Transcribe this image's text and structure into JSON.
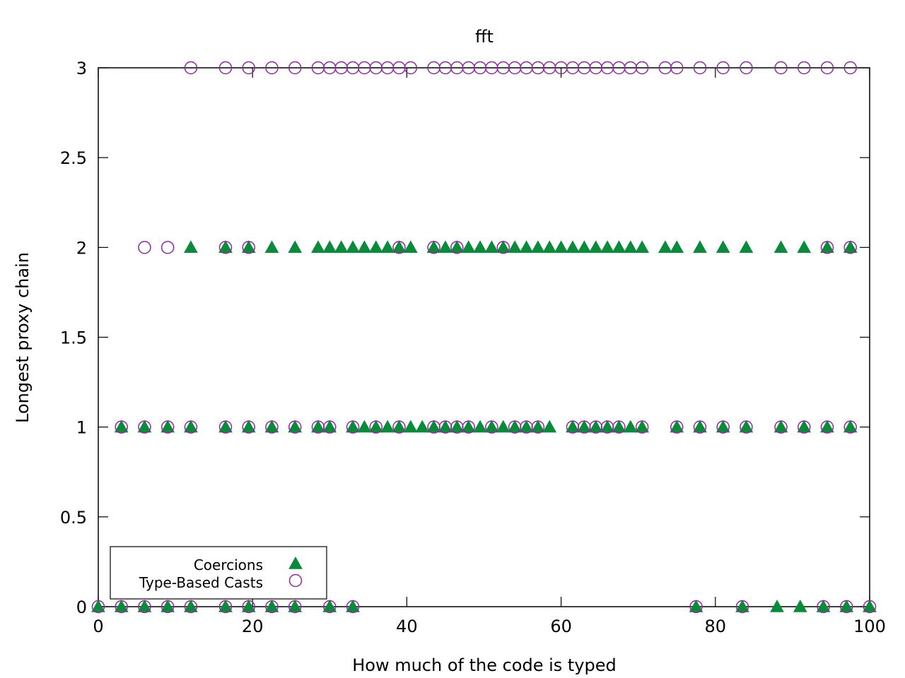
{
  "chart_data": {
    "type": "scatter",
    "title": "fft",
    "xlabel": "How much of the code is typed",
    "ylabel": "Longest proxy chain",
    "xlim": [
      0,
      100
    ],
    "ylim": [
      0,
      3
    ],
    "x_ticks": [
      0,
      20,
      40,
      60,
      80,
      100
    ],
    "y_ticks": [
      0,
      0.5,
      1,
      1.5,
      2,
      2.5,
      3
    ],
    "x_tick_labels": [
      "0",
      "20",
      "40",
      "60",
      "80",
      "100"
    ],
    "y_tick_labels": [
      "0",
      "0.5",
      "1",
      "1.5",
      "2",
      "2.5",
      "3"
    ],
    "grid": false,
    "legend_position": "bottom-left",
    "series": [
      {
        "name": "Coercions",
        "marker": "filled-triangle",
        "color": "#0a8a3a",
        "points": [
          [
            0,
            0
          ],
          [
            3,
            0
          ],
          [
            6,
            0
          ],
          [
            9,
            0
          ],
          [
            12,
            0
          ],
          [
            16.5,
            0
          ],
          [
            19.5,
            0
          ],
          [
            22.5,
            0
          ],
          [
            25.5,
            0
          ],
          [
            30,
            0
          ],
          [
            33,
            0
          ],
          [
            77.5,
            0
          ],
          [
            83.5,
            0
          ],
          [
            88,
            0
          ],
          [
            91,
            0
          ],
          [
            94,
            0
          ],
          [
            97,
            0
          ],
          [
            100,
            0
          ],
          [
            3,
            1
          ],
          [
            6,
            1
          ],
          [
            9,
            1
          ],
          [
            12,
            1
          ],
          [
            16.5,
            1
          ],
          [
            19.5,
            1
          ],
          [
            22.5,
            1
          ],
          [
            25.5,
            1
          ],
          [
            28.5,
            1
          ],
          [
            30,
            1
          ],
          [
            33,
            1
          ],
          [
            34.5,
            1
          ],
          [
            36,
            1
          ],
          [
            37.5,
            1
          ],
          [
            39,
            1
          ],
          [
            40.5,
            1
          ],
          [
            42,
            1
          ],
          [
            43.5,
            1
          ],
          [
            45,
            1
          ],
          [
            46.5,
            1
          ],
          [
            48,
            1
          ],
          [
            49.5,
            1
          ],
          [
            51,
            1
          ],
          [
            52.5,
            1
          ],
          [
            54,
            1
          ],
          [
            55.5,
            1
          ],
          [
            57,
            1
          ],
          [
            58.5,
            1
          ],
          [
            61.5,
            1
          ],
          [
            63,
            1
          ],
          [
            64.5,
            1
          ],
          [
            66,
            1
          ],
          [
            67.5,
            1
          ],
          [
            69,
            1
          ],
          [
            70.5,
            1
          ],
          [
            75,
            1
          ],
          [
            78,
            1
          ],
          [
            81,
            1
          ],
          [
            84,
            1
          ],
          [
            88.5,
            1
          ],
          [
            91.5,
            1
          ],
          [
            94.5,
            1
          ],
          [
            97.5,
            1
          ],
          [
            12,
            2
          ],
          [
            16.5,
            2
          ],
          [
            19.5,
            2
          ],
          [
            22.5,
            2
          ],
          [
            25.5,
            2
          ],
          [
            28.5,
            2
          ],
          [
            30,
            2
          ],
          [
            31.5,
            2
          ],
          [
            33,
            2
          ],
          [
            34.5,
            2
          ],
          [
            36,
            2
          ],
          [
            37.5,
            2
          ],
          [
            39,
            2
          ],
          [
            40.5,
            2
          ],
          [
            43.5,
            2
          ],
          [
            45,
            2
          ],
          [
            46.5,
            2
          ],
          [
            48,
            2
          ],
          [
            49.5,
            2
          ],
          [
            51,
            2
          ],
          [
            52.5,
            2
          ],
          [
            54,
            2
          ],
          [
            55.5,
            2
          ],
          [
            57,
            2
          ],
          [
            58.5,
            2
          ],
          [
            60,
            2
          ],
          [
            61.5,
            2
          ],
          [
            63,
            2
          ],
          [
            64.5,
            2
          ],
          [
            66,
            2
          ],
          [
            67.5,
            2
          ],
          [
            69,
            2
          ],
          [
            70.5,
            2
          ],
          [
            73.5,
            2
          ],
          [
            75,
            2
          ],
          [
            78,
            2
          ],
          [
            81,
            2
          ],
          [
            84,
            2
          ],
          [
            88.5,
            2
          ],
          [
            91.5,
            2
          ],
          [
            94.5,
            2
          ],
          [
            97.5,
            2
          ]
        ]
      },
      {
        "name": "Type-Based Casts",
        "marker": "open-circle",
        "color": "#8b2a9a",
        "points": [
          [
            0,
            0
          ],
          [
            3,
            0
          ],
          [
            6,
            0
          ],
          [
            9,
            0
          ],
          [
            12,
            0
          ],
          [
            16.5,
            0
          ],
          [
            19.5,
            0
          ],
          [
            22.5,
            0
          ],
          [
            25.5,
            0
          ],
          [
            30,
            0
          ],
          [
            33,
            0
          ],
          [
            77.5,
            0
          ],
          [
            83.5,
            0
          ],
          [
            94,
            0
          ],
          [
            97,
            0
          ],
          [
            100,
            0
          ],
          [
            3,
            1
          ],
          [
            6,
            1
          ],
          [
            9,
            1
          ],
          [
            12,
            1
          ],
          [
            16.5,
            1
          ],
          [
            19.5,
            1
          ],
          [
            22.5,
            1
          ],
          [
            25.5,
            1
          ],
          [
            28.5,
            1
          ],
          [
            30,
            1
          ],
          [
            33,
            1
          ],
          [
            36,
            1
          ],
          [
            39,
            1
          ],
          [
            43.5,
            1
          ],
          [
            45,
            1
          ],
          [
            46.5,
            1
          ],
          [
            48,
            1
          ],
          [
            51,
            1
          ],
          [
            54,
            1
          ],
          [
            55.5,
            1
          ],
          [
            57,
            1
          ],
          [
            61.5,
            1
          ],
          [
            63,
            1
          ],
          [
            64.5,
            1
          ],
          [
            66,
            1
          ],
          [
            67.5,
            1
          ],
          [
            70.5,
            1
          ],
          [
            75,
            1
          ],
          [
            78,
            1
          ],
          [
            81,
            1
          ],
          [
            84,
            1
          ],
          [
            88.5,
            1
          ],
          [
            91.5,
            1
          ],
          [
            94.5,
            1
          ],
          [
            97.5,
            1
          ],
          [
            6,
            2
          ],
          [
            9,
            2
          ],
          [
            16.5,
            2
          ],
          [
            19.5,
            2
          ],
          [
            39,
            2
          ],
          [
            43.5,
            2
          ],
          [
            46.5,
            2
          ],
          [
            52.5,
            2
          ],
          [
            94.5,
            2
          ],
          [
            97.5,
            2
          ],
          [
            12,
            3
          ],
          [
            16.5,
            3
          ],
          [
            19.5,
            3
          ],
          [
            22.5,
            3
          ],
          [
            25.5,
            3
          ],
          [
            28.5,
            3
          ],
          [
            30,
            3
          ],
          [
            31.5,
            3
          ],
          [
            33,
            3
          ],
          [
            34.5,
            3
          ],
          [
            36,
            3
          ],
          [
            37.5,
            3
          ],
          [
            39,
            3
          ],
          [
            40.5,
            3
          ],
          [
            43.5,
            3
          ],
          [
            45,
            3
          ],
          [
            46.5,
            3
          ],
          [
            48,
            3
          ],
          [
            49.5,
            3
          ],
          [
            51,
            3
          ],
          [
            52.5,
            3
          ],
          [
            54,
            3
          ],
          [
            55.5,
            3
          ],
          [
            57,
            3
          ],
          [
            58.5,
            3
          ],
          [
            60,
            3
          ],
          [
            61.5,
            3
          ],
          [
            63,
            3
          ],
          [
            64.5,
            3
          ],
          [
            66,
            3
          ],
          [
            67.5,
            3
          ],
          [
            69,
            3
          ],
          [
            70.5,
            3
          ],
          [
            73.5,
            3
          ],
          [
            75,
            3
          ],
          [
            78,
            3
          ],
          [
            81,
            3
          ],
          [
            84,
            3
          ],
          [
            88.5,
            3
          ],
          [
            91.5,
            3
          ],
          [
            94.5,
            3
          ],
          [
            97.5,
            3
          ]
        ]
      }
    ]
  }
}
